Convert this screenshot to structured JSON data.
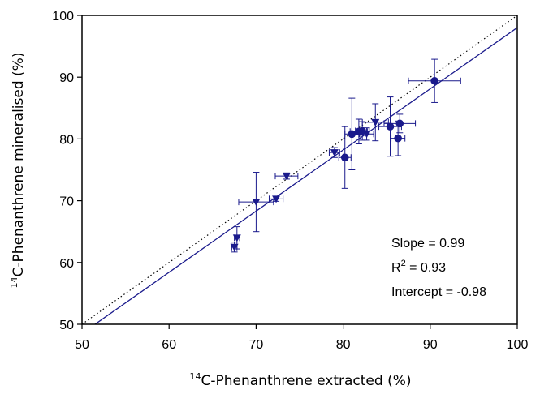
{
  "chart_data": {
    "type": "scatter",
    "xlabel": {
      "sup": "14",
      "text": "C-Phenanthrene extracted (%)"
    },
    "ylabel": {
      "sup": "14",
      "text": "C-Phenanthrene mineralised (%)"
    },
    "xlim": [
      50,
      100
    ],
    "ylim": [
      50,
      100
    ],
    "xticks": [
      "50",
      "60",
      "70",
      "80",
      "90",
      "100"
    ],
    "yticks": [
      "50",
      "60",
      "70",
      "80",
      "90",
      "100"
    ],
    "grid": false,
    "colors": {
      "points": "#1a1a8c",
      "fit_line": "#1a1a8c",
      "identity_line": "#000000",
      "axes": "#000000"
    },
    "series": [
      {
        "marker": "triangle-down",
        "points": [
          {
            "x": 67.5,
            "y": 62.5,
            "xerr": 0.3,
            "yerr": 0.8
          },
          {
            "x": 67.8,
            "y": 64.0,
            "xerr": 0.3,
            "yerr": 1.8
          },
          {
            "x": 70.0,
            "y": 69.8,
            "xerr": 2.0,
            "yerr": 4.8
          },
          {
            "x": 72.3,
            "y": 70.3,
            "xerr": 0.8,
            "yerr": 0.4
          },
          {
            "x": 73.5,
            "y": 74.0,
            "xerr": 1.3,
            "yerr": 0.5
          },
          {
            "x": 79.0,
            "y": 77.8,
            "xerr": 0.6,
            "yerr": 0.8
          },
          {
            "x": 82.7,
            "y": 80.8,
            "xerr": 0.8,
            "yerr": 1.0
          },
          {
            "x": 83.7,
            "y": 82.7,
            "xerr": 1.5,
            "yerr": 3.0
          }
        ]
      },
      {
        "marker": "circle",
        "points": [
          {
            "x": 80.2,
            "y": 77.0,
            "xerr": 0.7,
            "yerr": 5.0
          },
          {
            "x": 81.0,
            "y": 80.8,
            "xerr": 0.8,
            "yerr": 5.8
          },
          {
            "x": 81.8,
            "y": 81.2,
            "xerr": 1.0,
            "yerr": 2.0
          },
          {
            "x": 82.2,
            "y": 81.3,
            "xerr": 0.8,
            "yerr": 1.5
          },
          {
            "x": 85.4,
            "y": 82.0,
            "xerr": 1.3,
            "yerr": 4.8
          },
          {
            "x": 86.3,
            "y": 80.1,
            "xerr": 0.8,
            "yerr": 2.8
          },
          {
            "x": 86.5,
            "y": 82.5,
            "xerr": 1.8,
            "yerr": 1.5
          },
          {
            "x": 90.5,
            "y": 89.4,
            "xerr": 3.0,
            "yerr": 3.5
          }
        ]
      }
    ],
    "lines": [
      {
        "style": "solid",
        "slope": 0.99,
        "intercept": -0.98
      },
      {
        "style": "dotted",
        "slope": 1,
        "intercept": 0
      }
    ],
    "annotations": {
      "slope": "Slope = 0.99",
      "r2_base": "R",
      "r2_sup": "2",
      "r2_rest": " = 0.93",
      "intercept": "Intercept = -0.98"
    }
  }
}
